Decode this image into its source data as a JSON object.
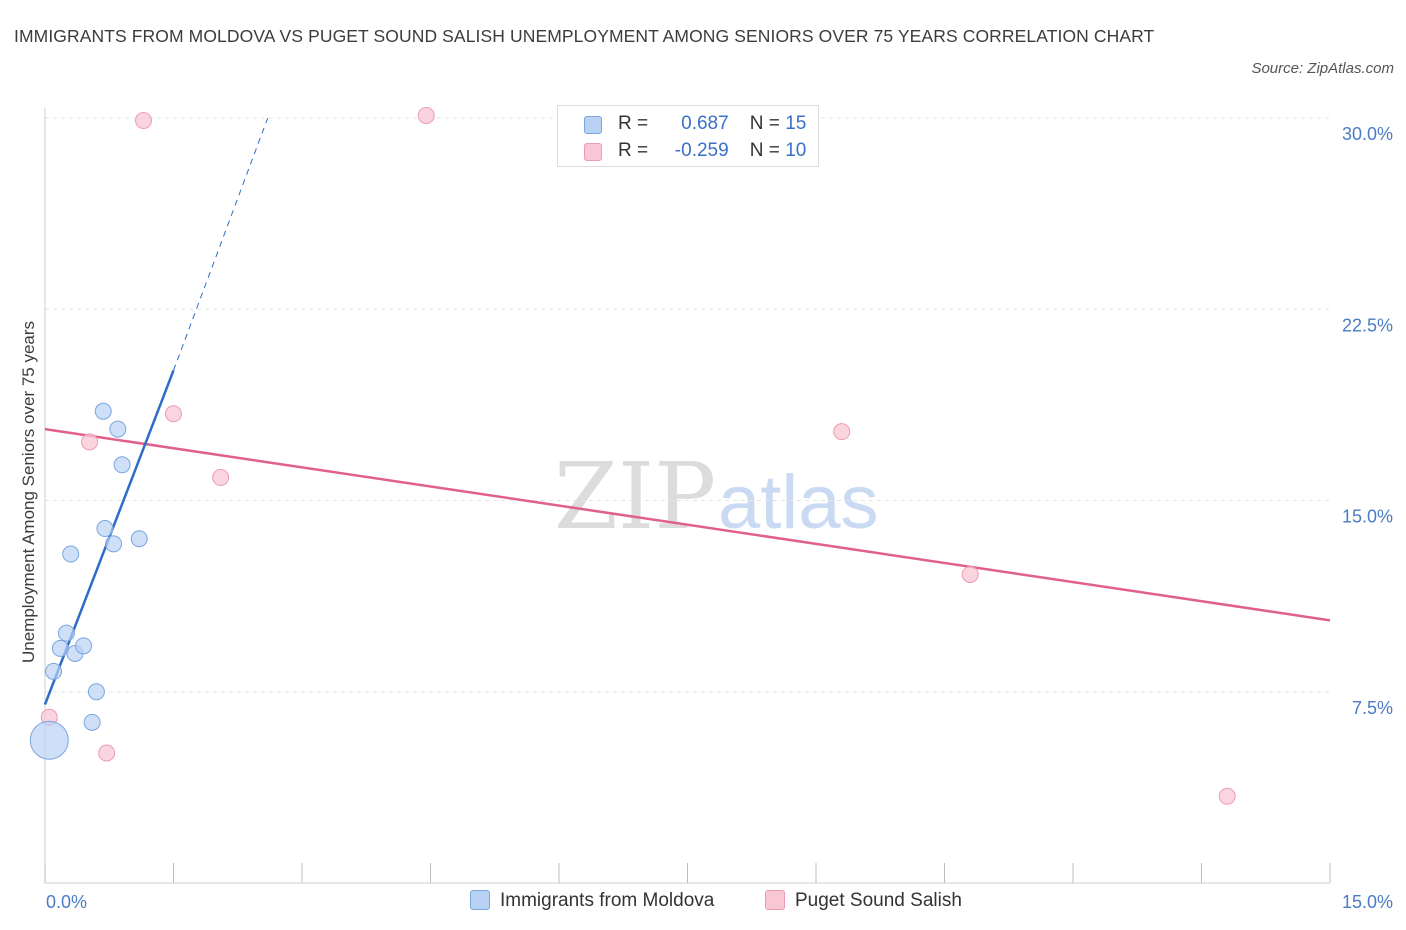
{
  "title": "IMMIGRANTS FROM MOLDOVA VS PUGET SOUND SALISH UNEMPLOYMENT AMONG SENIORS OVER 75 YEARS CORRELATION CHART",
  "source": "Source: ZipAtlas.com",
  "watermark": {
    "zip": "ZIP",
    "atlas": "atlas"
  },
  "legend": {
    "r_label": "R =",
    "n_label": "N =",
    "rows": [
      {
        "r": "0.687",
        "n": "15"
      },
      {
        "r": "-0.259",
        "n": "10"
      }
    ]
  },
  "colors": {
    "blue_fill": "#b9d1f3",
    "blue_stroke": "#7aa6e0",
    "blue_line": "#2d6cc8",
    "pink_fill": "#f8c6d4",
    "pink_stroke": "#ee9bb3",
    "pink_line": "#e0608a",
    "tick_text": "#4a7cc4",
    "grid": "#e4e4e4"
  },
  "chart_data": {
    "type": "scatter",
    "title": "IMMIGRANTS FROM MOLDOVA VS PUGET SOUND SALISH UNEMPLOYMENT AMONG SENIORS OVER 75 YEARS CORRELATION CHART",
    "xlabel": "",
    "ylabel": "Unemployment Among Seniors over 75 years",
    "xlim": [
      0,
      15
    ],
    "ylim": [
      0,
      30
    ],
    "x_tick_labels": [
      "0.0%",
      "15.0%"
    ],
    "y_ticks": [
      7.5,
      15.0,
      22.5,
      30.0
    ],
    "y_tick_labels": [
      "7.5%",
      "15.0%",
      "22.5%",
      "30.0%"
    ],
    "grid": "horizontal dashed",
    "legend_position": "bottom",
    "series": [
      {
        "name": "Immigrants from Moldova",
        "color": "#b9d1f3",
        "points": [
          {
            "x": 0.05,
            "y": 5.6,
            "size": "large"
          },
          {
            "x": 0.1,
            "y": 8.3
          },
          {
            "x": 0.18,
            "y": 9.2
          },
          {
            "x": 0.25,
            "y": 9.8
          },
          {
            "x": 0.35,
            "y": 9.0
          },
          {
            "x": 0.45,
            "y": 9.3
          },
          {
            "x": 0.55,
            "y": 6.3
          },
          {
            "x": 0.6,
            "y": 7.5
          },
          {
            "x": 0.3,
            "y": 12.9
          },
          {
            "x": 0.7,
            "y": 13.9
          },
          {
            "x": 0.8,
            "y": 13.3
          },
          {
            "x": 1.1,
            "y": 13.5
          },
          {
            "x": 0.9,
            "y": 16.4
          },
          {
            "x": 0.85,
            "y": 17.8
          },
          {
            "x": 0.68,
            "y": 18.5
          }
        ],
        "trend": {
          "x0": 0.0,
          "y0": 7.0,
          "x1": 1.5,
          "y1": 20.1,
          "dashed_to": {
            "x": 2.6,
            "y": 30.0
          }
        }
      },
      {
        "name": "Puget Sound Salish",
        "color": "#f8c6d4",
        "points": [
          {
            "x": 0.05,
            "y": 6.5
          },
          {
            "x": 0.72,
            "y": 5.1
          },
          {
            "x": 0.52,
            "y": 17.3
          },
          {
            "x": 1.5,
            "y": 18.4
          },
          {
            "x": 2.05,
            "y": 15.9
          },
          {
            "x": 1.15,
            "y": 29.9
          },
          {
            "x": 4.45,
            "y": 30.1
          },
          {
            "x": 9.3,
            "y": 17.7
          },
          {
            "x": 10.8,
            "y": 12.1
          },
          {
            "x": 13.8,
            "y": 3.4
          }
        ],
        "trend": {
          "x0": 0.0,
          "y0": 17.8,
          "x1": 15.0,
          "y1": 10.3
        }
      }
    ]
  }
}
